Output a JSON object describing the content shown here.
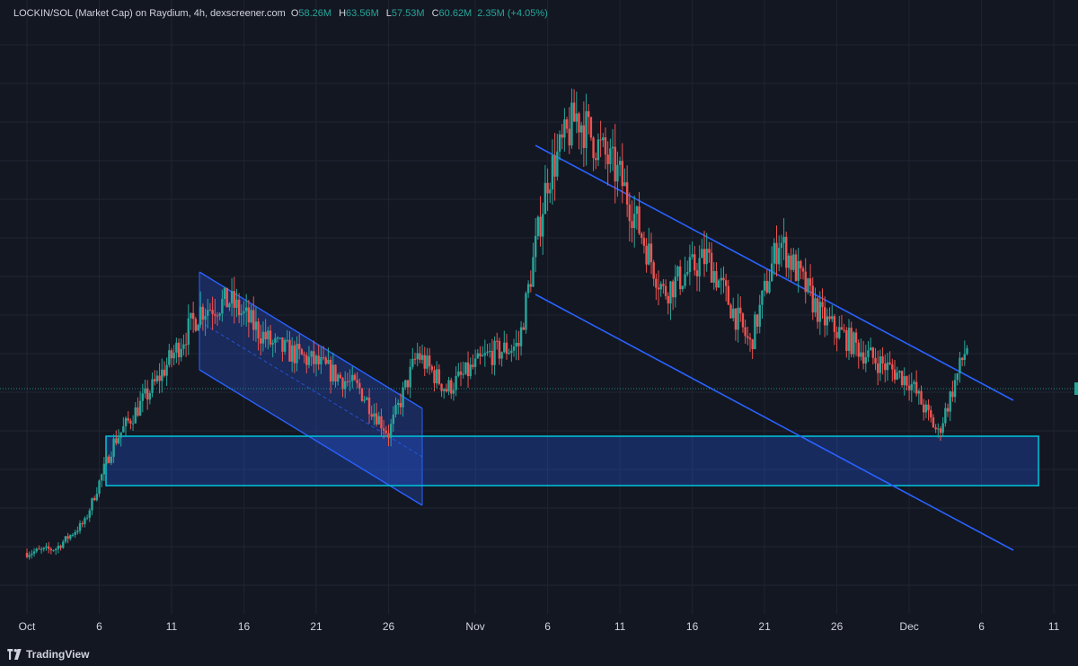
{
  "header": {
    "pair": "LOCKIN/SOL (Market Cap) on Raydium, 4h, dexscreener.com",
    "open_label": "O",
    "open": "58.26M",
    "high_label": "H",
    "high": "63.56M",
    "low_label": "L",
    "low": "57.53M",
    "close_label": "C",
    "close": "60.62M",
    "change": "2.35M (+4.05%)"
  },
  "x_axis": {
    "ticks": [
      "Oct",
      "6",
      "11",
      "16",
      "21",
      "26",
      "Nov",
      "6",
      "11",
      "16",
      "21",
      "26",
      "Dec",
      "6",
      "11"
    ]
  },
  "footer": {
    "brand": "TradingView"
  },
  "colors": {
    "background": "#131722",
    "grid": "#1f2433",
    "up": "#26a69a",
    "down": "#ef5350",
    "trendline": "#2962ff",
    "zone_border": "#00bcd4",
    "zone_fill": "#2962ff",
    "text": "#d1d4dc"
  },
  "chart_data": {
    "type": "candlestick",
    "interval": "4h",
    "unit": "Market Cap (USD)",
    "last_bar": {
      "open": 58260000,
      "high": 63560000,
      "low": 57530000,
      "close": 60620000
    },
    "trend": [
      {
        "date": "Oct 1",
        "close_m": 13
      },
      {
        "date": "Oct 3",
        "close_m": 14
      },
      {
        "date": "Oct 5",
        "close_m": 20
      },
      {
        "date": "Oct 7",
        "close_m": 38
      },
      {
        "date": "Oct 10",
        "close_m": 52
      },
      {
        "date": "Oct 13",
        "close_m": 68
      },
      {
        "date": "Oct 15",
        "close_m": 70
      },
      {
        "date": "Oct 18",
        "close_m": 60
      },
      {
        "date": "Oct 21",
        "close_m": 56
      },
      {
        "date": "Oct 24",
        "close_m": 50
      },
      {
        "date": "Oct 26",
        "close_m": 40
      },
      {
        "date": "Oct 28",
        "close_m": 58
      },
      {
        "date": "Oct 30",
        "close_m": 50
      },
      {
        "date": "Nov 2",
        "close_m": 58
      },
      {
        "date": "Nov 4",
        "close_m": 60
      },
      {
        "date": "Nov 6",
        "close_m": 98
      },
      {
        "date": "Nov 8",
        "close_m": 112
      },
      {
        "date": "Nov 11",
        "close_m": 98
      },
      {
        "date": "Nov 14",
        "close_m": 72
      },
      {
        "date": "Nov 17",
        "close_m": 80
      },
      {
        "date": "Nov 20",
        "close_m": 60
      },
      {
        "date": "Nov 22",
        "close_m": 84
      },
      {
        "date": "Nov 25",
        "close_m": 66
      },
      {
        "date": "Nov 28",
        "close_m": 58
      },
      {
        "date": "Dec 1",
        "close_m": 52
      },
      {
        "date": "Dec 3",
        "close_m": 40
      },
      {
        "date": "Dec 5",
        "close_m": 60
      }
    ]
  }
}
